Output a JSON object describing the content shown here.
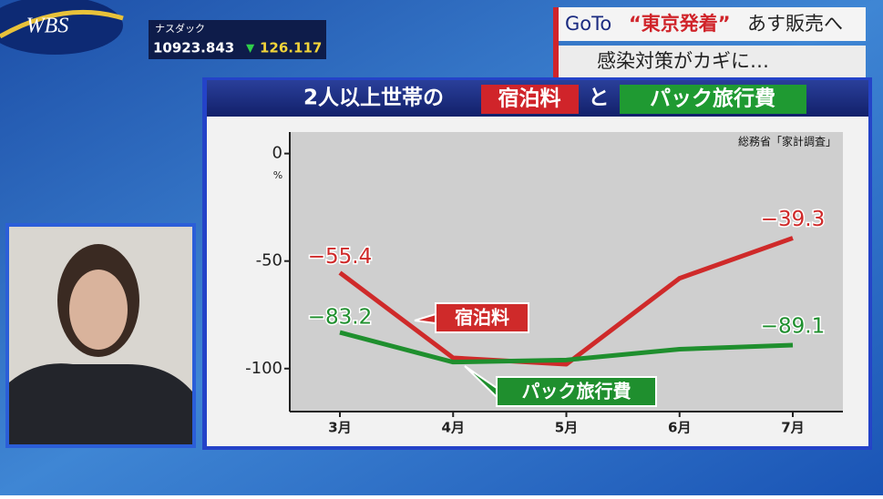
{
  "logo": "WBS",
  "ticker": {
    "name": "ナスダック",
    "value": "10923.843",
    "change_sign": "▼",
    "change": "126.117"
  },
  "headline": {
    "line1": [
      "GoTo",
      "“東京発着”",
      "あす販売へ"
    ],
    "line2": "感染対策がカギに…"
  },
  "chart_data": {
    "type": "line",
    "title_parts": [
      "2人以上世帯の",
      "宿泊料",
      "と",
      "パック旅行費"
    ],
    "source": "総務省「家計調査」",
    "y_unit": "%",
    "categories": [
      "3月",
      "4月",
      "5月",
      "6月",
      "7月"
    ],
    "series": [
      {
        "name": "宿泊料",
        "color": "#cf2a2a",
        "values": [
          -55.4,
          -95,
          -98,
          -58,
          -39.3
        ],
        "value_labels": [
          "−55.4",
          null,
          null,
          null,
          "−39.3"
        ]
      },
      {
        "name": "パック旅行費",
        "color": "#1f8f2e",
        "values": [
          -83.2,
          -97,
          -96,
          -91,
          -89.1
        ],
        "value_labels": [
          "−83.2",
          null,
          null,
          null,
          "−89.1"
        ]
      }
    ],
    "ylim": [
      -120,
      10
    ],
    "yticks": [
      0,
      -50,
      -100
    ],
    "grid": false
  }
}
